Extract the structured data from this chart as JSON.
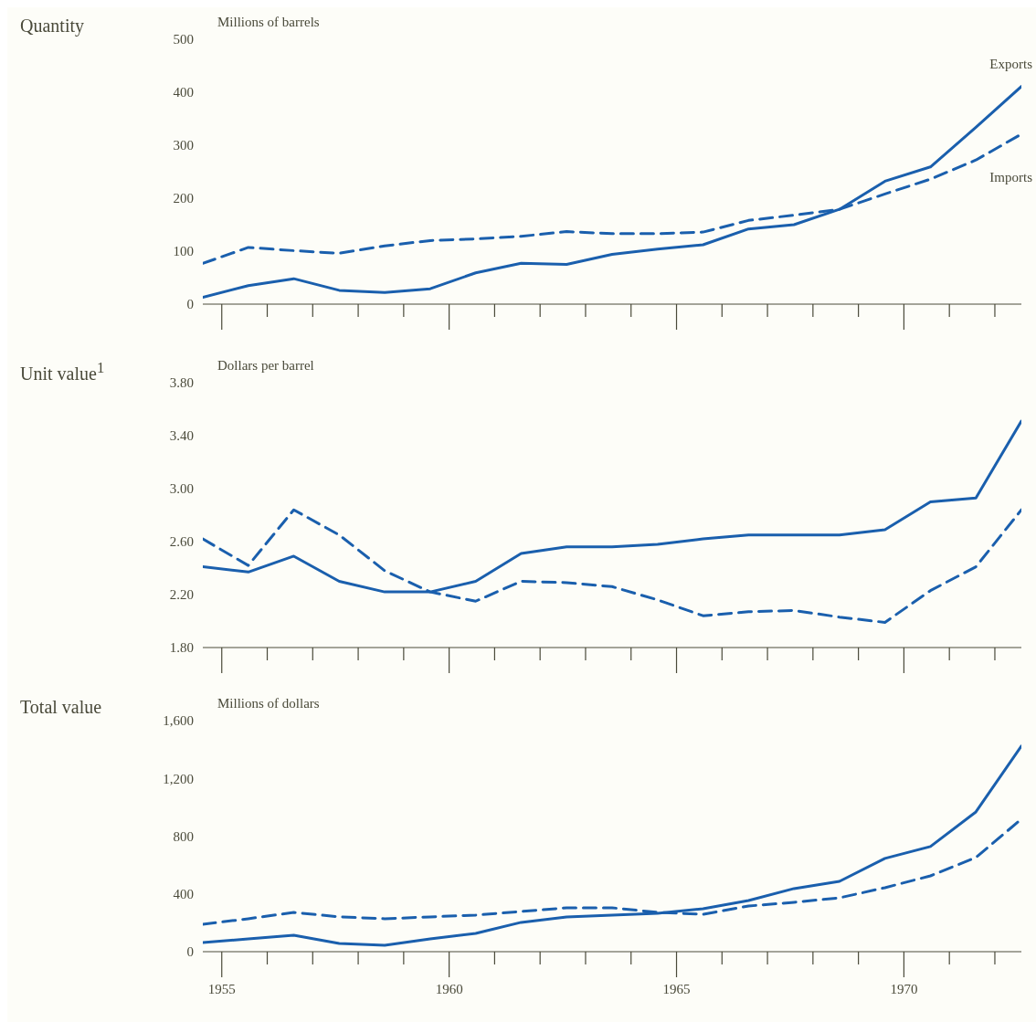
{
  "chart_data": [
    {
      "type": "line",
      "title": "Quantity",
      "ylabel": "Millions of barrels",
      "x": [
        "1954-08",
        "1955-08",
        "1956-08",
        "1957-08",
        "1958-08",
        "1959-08",
        "1960-08",
        "1961-08",
        "1962-08",
        "1963-08",
        "1964-08",
        "1965-08",
        "1966-08",
        "1967-08",
        "1968-08",
        "1969-08",
        "1970-08",
        "1971-08",
        "1972-08"
      ],
      "series": [
        {
          "name": "Exports",
          "color": "#1a5fad",
          "line_style": "solid",
          "values": [
            13,
            35,
            48,
            26,
            22,
            29,
            59,
            77,
            75,
            94,
            104,
            112,
            142,
            150,
            179,
            232,
            259,
            334,
            411
          ]
        },
        {
          "name": "Imports",
          "color": "#1a5fad",
          "line_style": "dashed",
          "values": [
            77,
            107,
            101,
            96,
            110,
            120,
            123,
            128,
            137,
            133,
            133,
            136,
            158,
            168,
            179,
            208,
            236,
            272,
            321
          ]
        }
      ],
      "xlim": [
        "1954-08",
        "1972-08"
      ],
      "xticks": [
        {
          "value": "1955",
          "label": null
        },
        {
          "value": "1956",
          "label": null
        },
        {
          "value": "1957",
          "label": null
        },
        {
          "value": "1958",
          "label": null
        },
        {
          "value": "1959",
          "label": null
        },
        {
          "value": "1960",
          "label": null
        },
        {
          "value": "1961",
          "label": null
        },
        {
          "value": "1962",
          "label": null
        },
        {
          "value": "1963",
          "label": null
        },
        {
          "value": "1964",
          "label": null
        },
        {
          "value": "1965",
          "label": null
        },
        {
          "value": "1966",
          "label": null
        },
        {
          "value": "1967",
          "label": null
        },
        {
          "value": "1968",
          "label": null
        },
        {
          "value": "1969",
          "label": null
        },
        {
          "value": "1970",
          "label": null
        },
        {
          "value": "1971",
          "label": null
        },
        {
          "value": "1972",
          "label": null
        }
      ],
      "ylim": [
        0,
        500
      ],
      "yticks": [
        0,
        100,
        200,
        300,
        400,
        500
      ],
      "tick_labels": "y"
    },
    {
      "type": "line",
      "title": "Unit value$^{1}$",
      "ylabel": "Dollars per barrel",
      "x": [
        "1954-08",
        "1955-08",
        "1956-08",
        "1957-08",
        "1958-08",
        "1959-08",
        "1960-08",
        "1961-08",
        "1962-08",
        "1963-08",
        "1964-08",
        "1965-08",
        "1966-08",
        "1967-08",
        "1968-08",
        "1969-08",
        "1970-08",
        "1971-08",
        "1972-08"
      ],
      "series": [
        {
          "color": "#1a5fad",
          "line_style": "solid",
          "values": [
            2.41,
            2.37,
            2.49,
            2.3,
            2.22,
            2.22,
            2.3,
            2.51,
            2.56,
            2.56,
            2.58,
            2.62,
            2.65,
            2.65,
            2.65,
            2.69,
            2.9,
            2.93,
            3.51
          ]
        },
        {
          "color": "#1a5fad",
          "line_style": "dashed",
          "values": [
            2.62,
            2.42,
            2.84,
            2.65,
            2.38,
            2.22,
            2.15,
            2.3,
            2.29,
            2.26,
            2.16,
            2.04,
            2.07,
            2.08,
            2.03,
            1.99,
            2.23,
            2.41,
            2.84
          ]
        }
      ],
      "xlim": [
        "1954-08",
        "1972-08"
      ],
      "xticks": [
        {
          "value": "1955",
          "label": null
        },
        {
          "value": "1956",
          "label": null
        },
        {
          "value": "1957",
          "label": null
        },
        {
          "value": "1958",
          "label": null
        },
        {
          "value": "1959",
          "label": null
        },
        {
          "value": "1960",
          "label": null
        },
        {
          "value": "1961",
          "label": null
        },
        {
          "value": "1962",
          "label": null
        },
        {
          "value": "1963",
          "label": null
        },
        {
          "value": "1964",
          "label": null
        },
        {
          "value": "1965",
          "label": null
        },
        {
          "value": "1966",
          "label": null
        },
        {
          "value": "1967",
          "label": null
        },
        {
          "value": "1968",
          "label": null
        },
        {
          "value": "1969",
          "label": null
        },
        {
          "value": "1970",
          "label": null
        },
        {
          "value": "1971",
          "label": null
        },
        {
          "value": "1972",
          "label": null
        }
      ],
      "ylim": [
        1.8,
        3.8
      ],
      "yticks": [
        {
          "value": 1.8,
          "label": "1.80"
        },
        {
          "value": 2.2,
          "label": "2.20"
        },
        {
          "value": 2.6,
          "label": "2.60"
        },
        {
          "value": 3.0,
          "label": "3.00"
        },
        {
          "value": 3.4,
          "label": "3.40"
        },
        {
          "value": 3.8,
          "label": "3.80"
        }
      ],
      "tick_labels": "y"
    },
    {
      "type": "line",
      "title": "Total value",
      "ylabel": "Millions of dollars",
      "x": [
        "1954-08",
        "1955-08",
        "1956-08",
        "1957-08",
        "1958-08",
        "1959-08",
        "1960-08",
        "1961-08",
        "1962-08",
        "1963-08",
        "1964-08",
        "1965-08",
        "1966-08",
        "1967-08",
        "1968-08",
        "1969-08",
        "1970-08",
        "1971-08",
        "1972-08"
      ],
      "series": [
        {
          "color": "#1a5fad",
          "line_style": "solid",
          "values": [
            63,
            89,
            114,
            57,
            44,
            89,
            127,
            203,
            241,
            253,
            266,
            297,
            354,
            437,
            487,
            646,
            728,
            968,
            1424
          ]
        },
        {
          "color": "#1a5fad",
          "line_style": "dashed",
          "values": [
            190,
            228,
            272,
            241,
            228,
            241,
            253,
            278,
            304,
            304,
            272,
            259,
            316,
            342,
            373,
            443,
            525,
            652,
            918
          ]
        }
      ],
      "xlim": [
        "1954-08",
        "1972-08"
      ],
      "xticks": [
        {
          "value": "1955",
          "label": "1955"
        },
        {
          "value": "1956",
          "label": null
        },
        {
          "value": "1957",
          "label": null
        },
        {
          "value": "1958",
          "label": null
        },
        {
          "value": "1959",
          "label": null
        },
        {
          "value": "1960",
          "label": "1960"
        },
        {
          "value": "1961",
          "label": null
        },
        {
          "value": "1962",
          "label": null
        },
        {
          "value": "1963",
          "label": null
        },
        {
          "value": "1964",
          "label": null
        },
        {
          "value": "1965",
          "label": "1965"
        },
        {
          "value": "1966",
          "label": null
        },
        {
          "value": "1967",
          "label": null
        },
        {
          "value": "1968",
          "label": null
        },
        {
          "value": "1969",
          "label": null
        },
        {
          "value": "1970",
          "label": "1970"
        },
        {
          "value": "1971",
          "label": null
        },
        {
          "value": "1972",
          "label": null
        }
      ],
      "ylim": [
        0,
        1600
      ],
      "yticks": [
        0,
        400,
        800,
        {
          "value": 1200,
          "label": "1,200"
        },
        {
          "value": 1600,
          "label": "1,600"
        }
      ]
    }
  ]
}
